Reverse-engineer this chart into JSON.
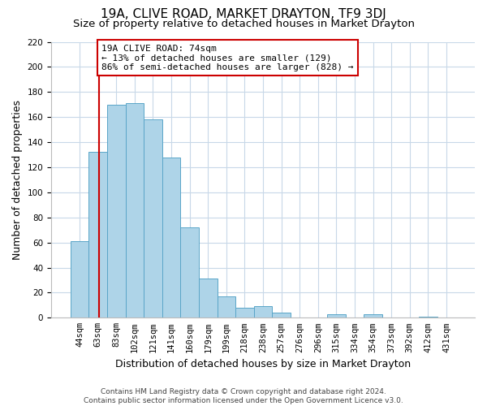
{
  "title": "19A, CLIVE ROAD, MARKET DRAYTON, TF9 3DJ",
  "subtitle": "Size of property relative to detached houses in Market Drayton",
  "xlabel": "Distribution of detached houses by size in Market Drayton",
  "ylabel": "Number of detached properties",
  "footer_line1": "Contains HM Land Registry data © Crown copyright and database right 2024.",
  "footer_line2": "Contains public sector information licensed under the Open Government Licence v3.0.",
  "bin_labels": [
    "44sqm",
    "63sqm",
    "83sqm",
    "102sqm",
    "121sqm",
    "141sqm",
    "160sqm",
    "179sqm",
    "199sqm",
    "218sqm",
    "238sqm",
    "257sqm",
    "276sqm",
    "296sqm",
    "315sqm",
    "334sqm",
    "354sqm",
    "373sqm",
    "392sqm",
    "412sqm",
    "431sqm"
  ],
  "bin_values": [
    61,
    132,
    170,
    171,
    158,
    128,
    72,
    31,
    17,
    8,
    9,
    4,
    0,
    0,
    3,
    0,
    3,
    0,
    0,
    1,
    0
  ],
  "bar_color": "#aed4e8",
  "bar_edge_color": "#5aa5c8",
  "bin_edges_sqm": [
    44,
    63,
    83,
    102,
    121,
    141,
    160,
    179,
    199,
    218,
    238,
    257,
    276,
    296,
    315,
    334,
    354,
    373,
    392,
    412,
    431
  ],
  "annotation_title": "19A CLIVE ROAD: 74sqm",
  "annotation_line1": "← 13% of detached houses are smaller (129)",
  "annotation_line2": "86% of semi-detached houses are larger (828) →",
  "annotation_box_color": "#ffffff",
  "annotation_box_edge_color": "#cc0000",
  "vline_color": "#cc0000",
  "property_sqm": 74,
  "ylim": [
    0,
    220
  ],
  "yticks": [
    0,
    20,
    40,
    60,
    80,
    100,
    120,
    140,
    160,
    180,
    200,
    220
  ],
  "background_color": "#ffffff",
  "grid_color": "#c8d8e8",
  "title_fontsize": 11,
  "subtitle_fontsize": 9.5,
  "axis_label_fontsize": 9,
  "tick_fontsize": 7.5,
  "footer_fontsize": 6.5
}
